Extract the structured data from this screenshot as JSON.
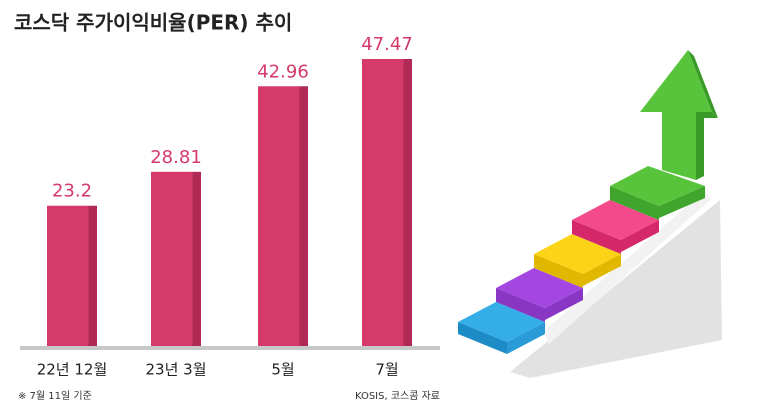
{
  "chart_data": {
    "type": "bar",
    "title": "코스닥 주가이익비율(PER) 추이",
    "categories": [
      "22년 12월",
      "23년 3월",
      "5월",
      "7월"
    ],
    "values": [
      23.2,
      28.81,
      42.96,
      47.47
    ],
    "color": "#d63a6a",
    "annotations": [
      "※ 7월 11일 기준",
      "KOSIS, 코스콤 자료"
    ]
  }
}
